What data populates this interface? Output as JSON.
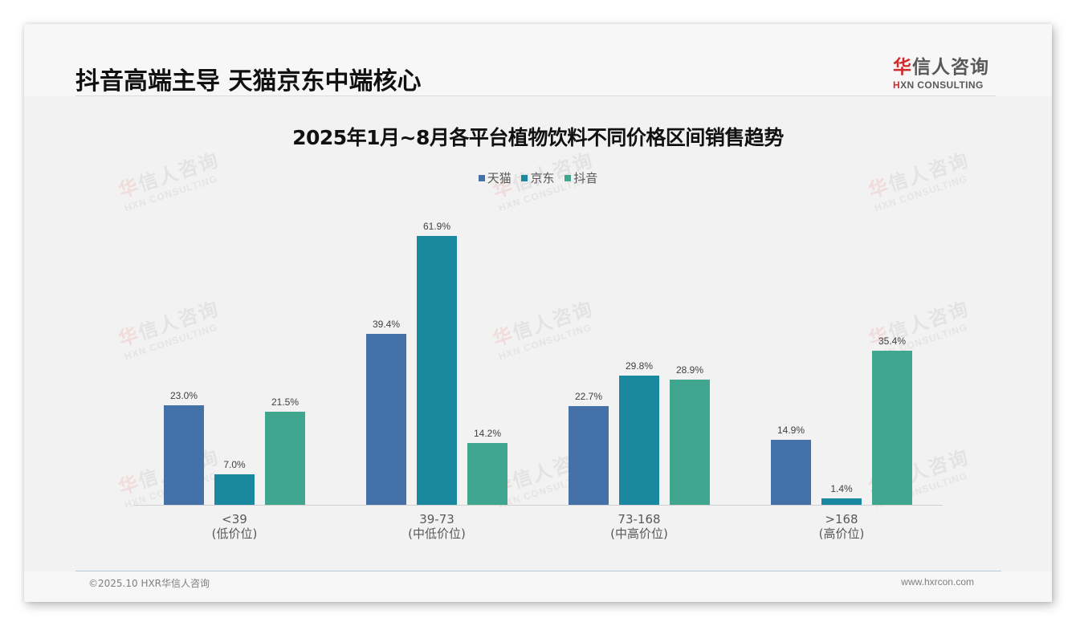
{
  "header": {
    "title": "抖音高端主导 天猫京东中端核心",
    "logo_cn_first": "华",
    "logo_cn_rest": "信人咨询",
    "logo_en_mark": "H",
    "logo_en_rest": "XN CONSULTING"
  },
  "watermark": {
    "cn_first": "华",
    "cn_rest": "信人咨询",
    "en": "HXN CONSULTING"
  },
  "footer": {
    "left": "©2025.10 HXR华信人咨询",
    "right": "www.hxrcon.com"
  },
  "colors": {
    "tmall": "#4472a8",
    "jd": "#1a889e",
    "douyin": "#41a68f",
    "background": "#f2f2f2",
    "brand_red": "#d22b2b"
  },
  "chart_data": {
    "type": "bar",
    "title": "2025年1月~8月各平台植物饮料不同价格区间销售趋势",
    "xlabel": "",
    "ylabel": "",
    "ylim": [
      0,
      70
    ],
    "grid": false,
    "legend_position": "top",
    "categories": [
      "<39",
      "39-73",
      "73-168",
      ">168"
    ],
    "category_sublabels": [
      "(低价位)",
      "(中低价位)",
      "(中高价位)",
      "(高价位)"
    ],
    "series": [
      {
        "name": "天猫",
        "values": [
          23.0,
          39.4,
          22.7,
          14.9
        ],
        "labels": [
          "23.0%",
          "39.4%",
          "22.7%",
          "14.9%"
        ]
      },
      {
        "name": "京东",
        "values": [
          7.0,
          61.9,
          29.8,
          1.4
        ],
        "labels": [
          "7.0%",
          "61.9%",
          "29.8%",
          "1.4%"
        ]
      },
      {
        "name": "抖音",
        "values": [
          21.5,
          14.2,
          28.9,
          35.4
        ],
        "labels": [
          "21.5%",
          "14.2%",
          "28.9%",
          "35.4%"
        ]
      }
    ],
    "value_format": "percent_1dp"
  }
}
